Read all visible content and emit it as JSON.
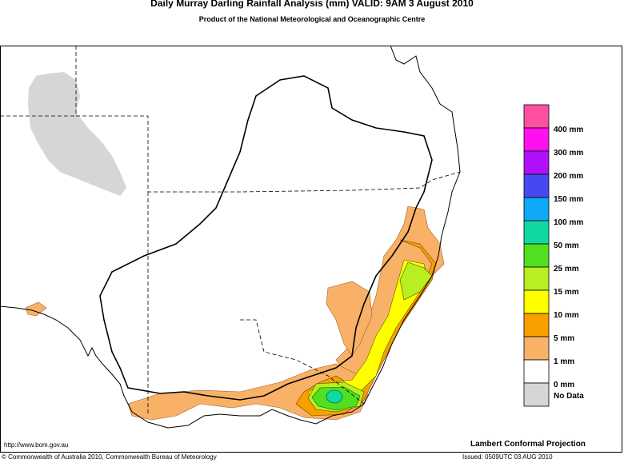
{
  "header": {
    "title": "Daily Murray Darling Rainfall Analysis (mm)  VALID: 9AM  3 August 2010",
    "subtitle": "Product of the National Meteorological and Oceanographic Centre"
  },
  "legend": {
    "colors": [
      "#ff4fa0",
      "#ff10f0",
      "#b010f8",
      "#4848f0",
      "#10a8f8",
      "#10d8a0",
      "#50e020",
      "#b7ef20",
      "#ffff00",
      "#f9a000",
      "#f9b168",
      "#ffffff",
      "#d6d6d6"
    ],
    "labels": [
      "400 mm",
      "300 mm",
      "200 mm",
      "150 mm",
      "100 mm",
      "50 mm",
      "25 mm",
      "15 mm",
      "10 mm",
      "5 mm",
      "1 mm",
      "0 mm",
      "No Data"
    ]
  },
  "footer": {
    "url": "http://www.bom.gov.au",
    "projection": "Lambert Conformal Projection",
    "copyright": "© Commonwealth of Australia 2010, Commonwealth Bureau of Meteorology",
    "issued": "Issued: 0509UTC 03 AUG 2010"
  }
}
